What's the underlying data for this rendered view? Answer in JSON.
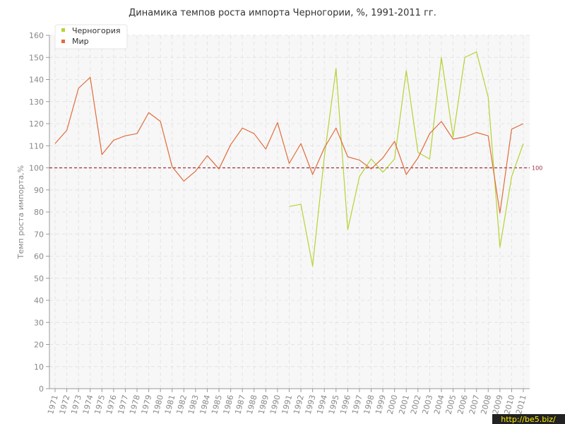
{
  "chart_data": {
    "type": "line",
    "title": "Динамика темпов роста импорта Черногории, %, 1991-2011 гг.",
    "xlabel": "",
    "ylabel": "Темп роста импорта,%",
    "ylim": [
      0,
      160
    ],
    "yticks": [
      0,
      10,
      20,
      30,
      40,
      50,
      60,
      70,
      80,
      90,
      100,
      110,
      120,
      130,
      140,
      150,
      160
    ],
    "grid": true,
    "legend_position": "top-left",
    "reference_line": {
      "value": 100,
      "label": "100",
      "color": "#9b2f3d"
    },
    "x": [
      "1971",
      "1972",
      "1973",
      "1974",
      "1975",
      "1976",
      "1977",
      "1978",
      "1979",
      "1980",
      "1981",
      "1982",
      "1983",
      "1984",
      "1985",
      "1986",
      "1987",
      "1988",
      "1989",
      "1990",
      "1991",
      "1992",
      "1993",
      "1994",
      "1995",
      "1996",
      "1997",
      "1998",
      "1999",
      "2000",
      "2001",
      "2002",
      "2003",
      "2004",
      "2005",
      "2006",
      "2007",
      "2008",
      "2009",
      "2010",
      "2011"
    ],
    "series": [
      {
        "name": "Черногория",
        "color": "#b5d334",
        "values": [
          null,
          null,
          null,
          null,
          null,
          null,
          null,
          null,
          null,
          null,
          null,
          null,
          null,
          null,
          null,
          null,
          null,
          null,
          null,
          null,
          82.5,
          83.5,
          55.5,
          105,
          145,
          72,
          96,
          104,
          98,
          104,
          144,
          107,
          104,
          150,
          114,
          150,
          152.5,
          132,
          64,
          96,
          111
        ]
      },
      {
        "name": "Мир",
        "color": "#e06c3c",
        "values": [
          111,
          117,
          136,
          141,
          106,
          112.5,
          114.5,
          115.5,
          125,
          121,
          100.5,
          94,
          98.5,
          105.5,
          99.5,
          110.5,
          118,
          115.5,
          108.5,
          120.5,
          102,
          111,
          97,
          109,
          118,
          105,
          103.5,
          99.5,
          104.5,
          112,
          97,
          104.5,
          115.5,
          121,
          113,
          114,
          116,
          114.5,
          79.5,
          117.5,
          120
        ]
      }
    ]
  },
  "watermark": "http://be5.biz/"
}
